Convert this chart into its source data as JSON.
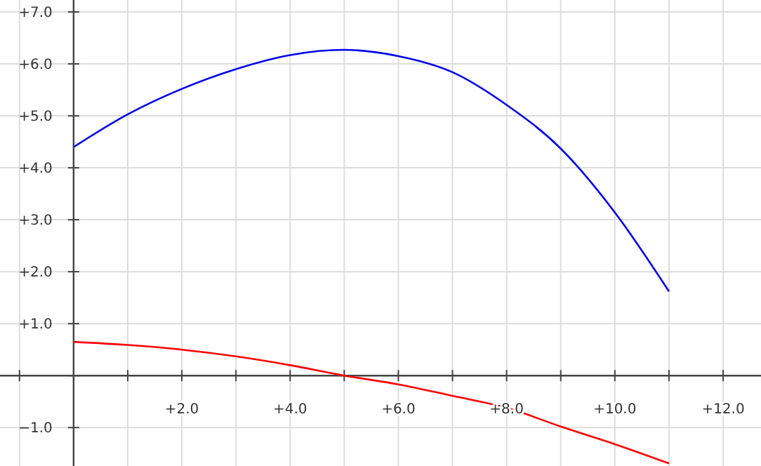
{
  "chart_data": {
    "type": "line",
    "x": [
      0,
      1,
      2,
      3,
      4,
      5,
      6,
      7,
      8,
      9,
      10,
      11
    ],
    "series": [
      {
        "color": "#0000ee",
        "values": [
          4.4,
          5.03,
          5.52,
          5.9,
          6.17,
          6.27,
          6.15,
          5.84,
          5.21,
          4.37,
          3.14,
          1.62
        ]
      },
      {
        "color": "#ff0000",
        "values": [
          0.65,
          0.59,
          0.5,
          0.37,
          0.2,
          0,
          -0.17,
          -0.39,
          -0.62,
          -0.98,
          -1.32,
          -1.69
        ]
      }
    ],
    "xlim": [
      -1.36,
      12.7
    ],
    "ylim": [
      -1.74,
      7.23
    ],
    "xticks": [
      {
        "value": -1,
        "label": null
      },
      {
        "value": 0,
        "label": null
      },
      {
        "value": 1,
        "label": null
      },
      {
        "value": 2,
        "label": "+2.0"
      },
      {
        "value": 3,
        "label": null
      },
      {
        "value": 4,
        "label": "+4.0"
      },
      {
        "value": 5,
        "label": null
      },
      {
        "value": 6,
        "label": "+6.0"
      },
      {
        "value": 7,
        "label": null
      },
      {
        "value": 8,
        "label": "+8.0"
      },
      {
        "value": 9,
        "label": null
      },
      {
        "value": 10,
        "label": "+10.0"
      },
      {
        "value": 11,
        "label": null
      },
      {
        "value": 12,
        "label": "+12.0"
      }
    ],
    "yticks": [
      {
        "value": -1,
        "label": "−1.0"
      },
      {
        "value": 0,
        "label": null
      },
      {
        "value": 1,
        "label": "+1.0"
      },
      {
        "value": 2,
        "label": "+2.0"
      },
      {
        "value": 3,
        "label": "+3.0"
      },
      {
        "value": 4,
        "label": "+4.0"
      },
      {
        "value": 5,
        "label": "+5.0"
      },
      {
        "value": 6,
        "label": "+6.0"
      },
      {
        "value": 7,
        "label": "+7.0"
      }
    ],
    "grid": true
  }
}
